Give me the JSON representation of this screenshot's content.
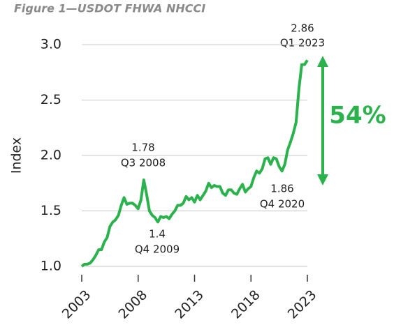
{
  "chart_data": {
    "type": "line",
    "title": "Figure 1—USDOT FHWA NHCCI",
    "y_label": "Index",
    "x": [
      2003,
      2003.25,
      2003.5,
      2003.75,
      2004,
      2004.25,
      2004.5,
      2004.75,
      2005,
      2005.25,
      2005.5,
      2005.75,
      2006,
      2006.25,
      2006.5,
      2006.75,
      2007,
      2007.25,
      2007.5,
      2007.75,
      2008,
      2008.25,
      2008.5,
      2008.75,
      2009,
      2009.25,
      2009.5,
      2009.75,
      2010,
      2010.25,
      2010.5,
      2010.75,
      2011,
      2011.25,
      2011.5,
      2011.75,
      2012,
      2012.25,
      2012.5,
      2012.75,
      2013,
      2013.25,
      2013.5,
      2013.75,
      2014,
      2014.25,
      2014.5,
      2014.75,
      2015,
      2015.25,
      2015.5,
      2015.75,
      2016,
      2016.25,
      2016.5,
      2016.75,
      2017,
      2017.25,
      2017.5,
      2017.75,
      2018,
      2018.25,
      2018.5,
      2018.75,
      2019,
      2019.25,
      2019.5,
      2019.75,
      2020,
      2020.25,
      2020.5,
      2020.75,
      2021,
      2021.25,
      2021.5,
      2021.75,
      2022,
      2022.25,
      2022.5,
      2022.75,
      2023
    ],
    "series": [
      {
        "name": "NHCCI",
        "color": "#2bb24c",
        "values": [
          1.0,
          1.02,
          1.02,
          1.03,
          1.06,
          1.1,
          1.15,
          1.15,
          1.22,
          1.26,
          1.36,
          1.4,
          1.42,
          1.46,
          1.55,
          1.62,
          1.56,
          1.57,
          1.57,
          1.55,
          1.52,
          1.6,
          1.78,
          1.65,
          1.5,
          1.46,
          1.44,
          1.4,
          1.45,
          1.44,
          1.45,
          1.43,
          1.47,
          1.5,
          1.55,
          1.55,
          1.57,
          1.63,
          1.6,
          1.62,
          1.58,
          1.64,
          1.6,
          1.64,
          1.68,
          1.75,
          1.71,
          1.73,
          1.72,
          1.72,
          1.66,
          1.64,
          1.69,
          1.69,
          1.66,
          1.65,
          1.7,
          1.74,
          1.67,
          1.7,
          1.72,
          1.8,
          1.86,
          1.84,
          1.88,
          1.97,
          1.98,
          1.92,
          1.98,
          1.97,
          1.9,
          1.86,
          1.92,
          2.05,
          2.12,
          2.2,
          2.3,
          2.6,
          2.82,
          2.82,
          2.86
        ]
      }
    ],
    "xlim": [
      2003,
      2023
    ],
    "xticks": [
      2003,
      2008,
      2013,
      2018,
      2023
    ],
    "ylim": [
      1.0,
      3.0
    ],
    "yticks": [
      {
        "value": 1.0,
        "label": "1.0"
      },
      1.5,
      {
        "value": 2.0,
        "label": "2.0"
      },
      2.5,
      {
        "value": 3.0,
        "label": "3.0"
      }
    ],
    "grid": true,
    "annotations": [
      {
        "value": "1.78",
        "date": "Q3 2008"
      },
      {
        "value": "1.4",
        "date": "Q4 2009"
      },
      {
        "value": "1.86",
        "date": "Q4 2020"
      },
      {
        "value": "2.86",
        "date": "Q1 2023"
      }
    ],
    "change_label": "54%"
  }
}
